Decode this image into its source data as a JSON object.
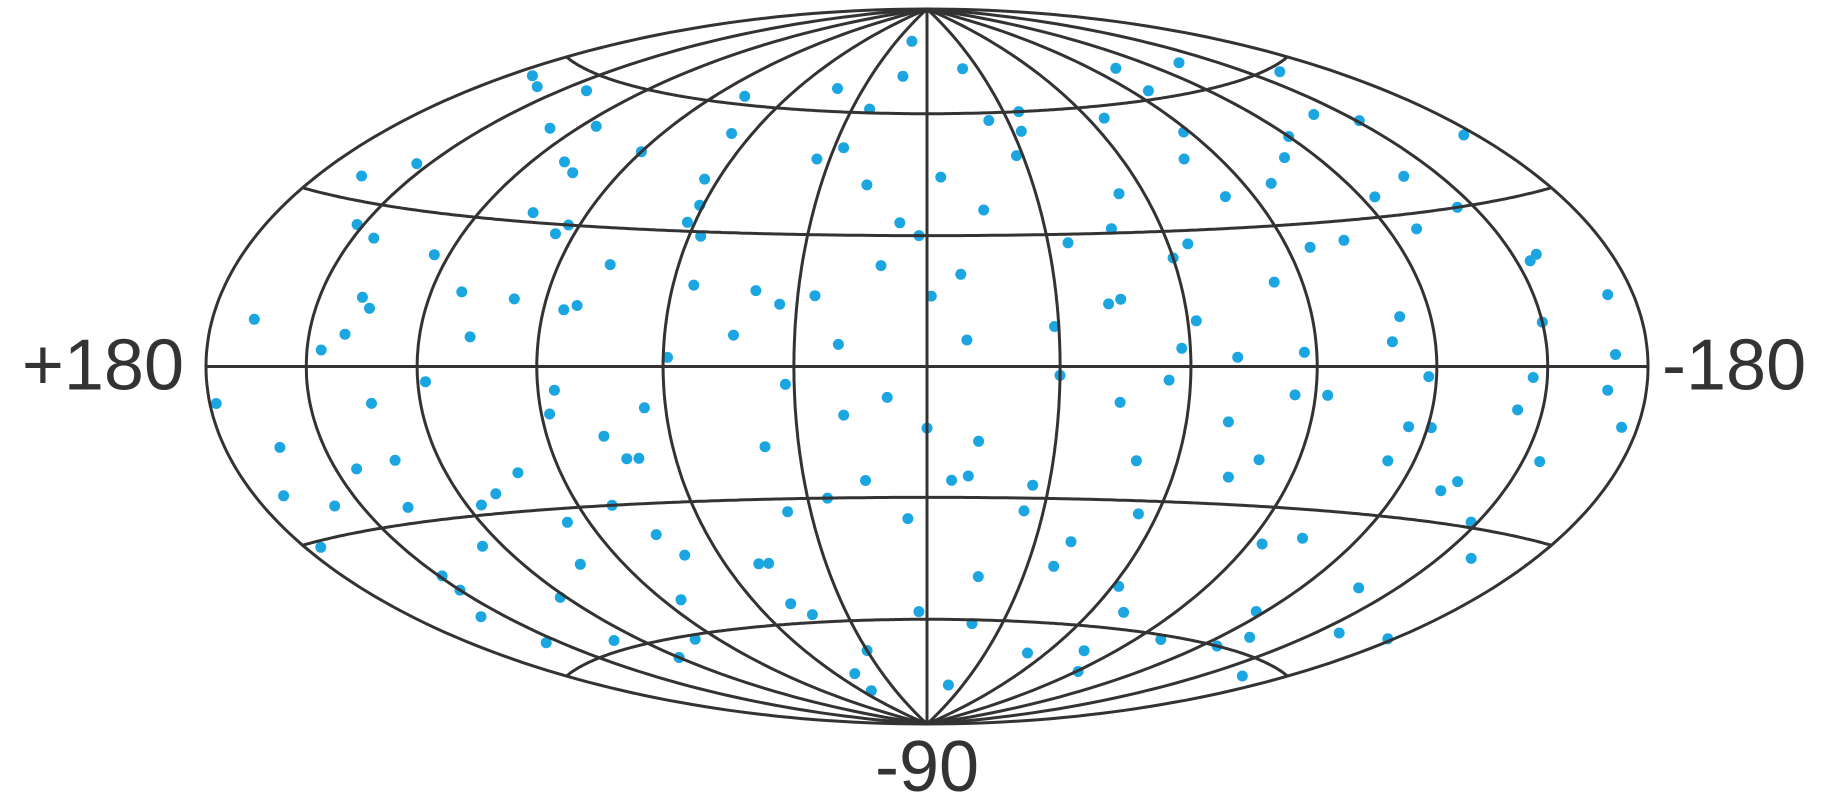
{
  "chart_data": {
    "type": "scatter",
    "projection": "hammer",
    "xlim": [
      180,
      -180
    ],
    "ylim": [
      -90,
      90
    ],
    "xticks": [
      {
        "value": 180,
        "label": "+180"
      },
      -180
    ],
    "yticks": [
      -90
    ],
    "meridians": [
      -150,
      -120,
      -90,
      -60,
      -30,
      0,
      30,
      60,
      90,
      120,
      150
    ],
    "parallels": [
      -60,
      -30,
      0,
      30,
      60
    ],
    "color": "#1ba6e1",
    "grid_color": "#333333",
    "x": [
      -172,
      -160,
      -151,
      -143,
      -135,
      -128,
      -117,
      -109,
      -98,
      -91,
      -83,
      -74,
      -66,
      -55,
      -47,
      -38,
      -29,
      -21,
      -12,
      -4,
      3,
      11,
      19,
      27,
      36,
      44,
      52,
      61,
      69,
      78,
      86,
      95,
      103,
      112,
      120,
      129,
      137,
      146,
      154,
      163,
      171,
      -176,
      -165,
      -154,
      -146,
      -138,
      -124,
      -113,
      -102,
      -94,
      -87,
      -79,
      -70,
      -60,
      -51,
      -42,
      -33,
      -25,
      -16,
      -8,
      7,
      15,
      23,
      32,
      40,
      48,
      57,
      65,
      74,
      82,
      90,
      99,
      107,
      116,
      124,
      133,
      141,
      150,
      158,
      167,
      -168,
      -157,
      -148,
      -139,
      -131,
      -121,
      -112,
      -104,
      -96,
      -88,
      -80,
      -71,
      -62,
      -53,
      -44,
      -35,
      -26,
      -18,
      -9,
      -1,
      9,
      17,
      25,
      34,
      42,
      50,
      59,
      67,
      76,
      84,
      93,
      101,
      110,
      118,
      126,
      135,
      144,
      152,
      161,
      175,
      -178,
      -162,
      -145,
      -126,
      -110,
      -93,
      -76,
      -58,
      -40,
      -23,
      -6,
      13,
      30,
      47,
      64,
      81,
      98,
      115,
      132,
      149,
      166,
      -150,
      -118,
      -85,
      -50,
      -15,
      20,
      55,
      88,
      122,
      158,
      -135,
      -100,
      -65,
      -30,
      5,
      38,
      72,
      105,
      140,
      -170,
      -140,
      -106,
      -72,
      -36,
      0,
      34,
      70,
      104,
      138,
      172,
      -155,
      -120,
      -82,
      -45,
      -10,
      26,
      62,
      96,
      130,
      -175,
      -158,
      -132,
      -97,
      -62,
      -28,
      2,
      43,
      77,
      110,
      144,
      178,
      -115,
      -55,
      -18,
      15,
      48,
      85,
      120,
      155
    ],
    "y": [
      12,
      -35,
      48,
      -8,
      66,
      27,
      -52,
      5,
      39,
      -71,
      18,
      -24,
      57,
      -3,
      31,
      -46,
      9,
      72,
      -17,
      44,
      -58,
      23,
      -11,
      51,
      -33,
      7,
      -79,
      36,
      -20,
      62,
      -5,
      28,
      -42,
      15,
      -64,
      49,
      -27,
      3,
      38,
      -14,
      -22,
      41,
      -63,
      19,
      -2,
      -44,
      34,
      -19,
      68,
      -38,
      3,
      46,
      -12,
      24,
      -68,
      14,
      55,
      -33,
      -49,
      21,
      33,
      -26,
      61,
      -4,
      17,
      -55,
      29,
      -9,
      -37,
      13,
      47,
      -61,
      6,
      -28,
      22,
      -7,
      57,
      -43,
      -25,
      8,
      -4,
      20,
      -29,
      37,
      -57,
      -12,
      10,
      -36,
      25,
      52,
      -20,
      2,
      -50,
      39,
      -8,
      28,
      -27,
      -61,
      6,
      16,
      -7,
      42,
      -30,
      14,
      66,
      -45,
      2,
      53,
      -15,
      -52,
      30,
      -22,
      43,
      -3,
      -36,
      11,
      -19,
      26,
      55,
      -31,
      -50,
      59,
      30,
      -60,
      44,
      -6,
      -66,
      4,
      -40,
      58,
      -26,
      70,
      -68,
      -45,
      42,
      -30,
      14,
      51,
      -18,
      -40,
      34,
      8,
      -2,
      -6,
      -21,
      36,
      5,
      18,
      -10,
      -48,
      -48,
      -22,
      -61,
      27,
      -2,
      -35,
      -18,
      -20,
      32,
      6,
      2,
      51,
      26,
      -56,
      60,
      -14,
      48,
      -42,
      41,
      13,
      56,
      -17,
      48,
      37,
      15,
      -25,
      16,
      32,
      -33,
      -58,
      -10,
      -52,
      -24,
      62,
      10,
      49,
      30,
      -58,
      22,
      -26,
      24,
      -6,
      -12,
      -33,
      -78,
      80,
      -74,
      12,
      -64,
      -55
    ]
  }
}
